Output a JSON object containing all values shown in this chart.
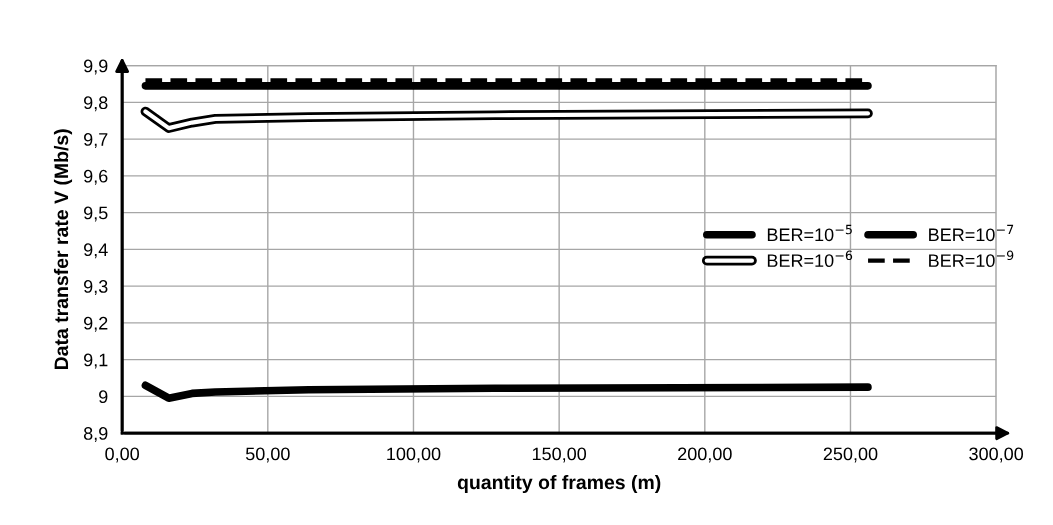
{
  "chart_data": {
    "type": "line",
    "xlabel": "quantity of frames (m)",
    "ylabel": "Data transfer rate V (Mb/s)",
    "xlim": [
      0,
      300
    ],
    "ylim": [
      8.9,
      9.9
    ],
    "xticks": [
      {
        "value": 0,
        "label": "0,00"
      },
      {
        "value": 50,
        "label": "50,00"
      },
      {
        "value": 100,
        "label": "100,00"
      },
      {
        "value": 150,
        "label": "150,00"
      },
      {
        "value": 200,
        "label": "200,00"
      },
      {
        "value": 250,
        "label": "250,00"
      },
      {
        "value": 300,
        "label": "300,00"
      }
    ],
    "yticks": [
      {
        "value": 8.9,
        "label": "8,9"
      },
      9,
      {
        "value": 9.1,
        "label": "9,1"
      },
      {
        "value": 9.2,
        "label": "9,2"
      },
      {
        "value": 9.3,
        "label": "9,3"
      },
      {
        "value": 9.4,
        "label": "9,4"
      },
      {
        "value": 9.5,
        "label": "9,5"
      },
      {
        "value": 9.6,
        "label": "9,6"
      },
      {
        "value": 9.7,
        "label": "9,7"
      },
      {
        "value": 9.8,
        "label": "9,8"
      },
      {
        "value": 9.9,
        "label": "9,9"
      }
    ],
    "x": [
      8,
      16,
      24,
      32,
      64,
      128,
      256
    ],
    "grid": true,
    "legend": "right",
    "marker": "none",
    "series": [
      {
        "name": "BER=10$^{−5}$",
        "color": "#000000",
        "values": [
          9.03,
          8.995,
          9.008,
          9.012,
          9.018,
          9.022,
          9.025
        ]
      },
      {
        "name": "BER=10$^{−6}$",
        "color": "#000000",
        "values": [
          9.775,
          9.73,
          9.745,
          9.755,
          9.76,
          9.765,
          9.77
        ]
      },
      {
        "name": "BER=10$^{−7}$",
        "color": "#000000",
        "values": [
          9.845,
          9.845,
          9.845,
          9.845,
          9.845,
          9.845,
          9.845
        ]
      },
      {
        "name": "BER=10$^{−9}$",
        "color": "#000000",
        "line_style": "dashed",
        "values": [
          9.86,
          9.86,
          9.86,
          9.86,
          9.86,
          9.86,
          9.86
        ]
      }
    ]
  }
}
